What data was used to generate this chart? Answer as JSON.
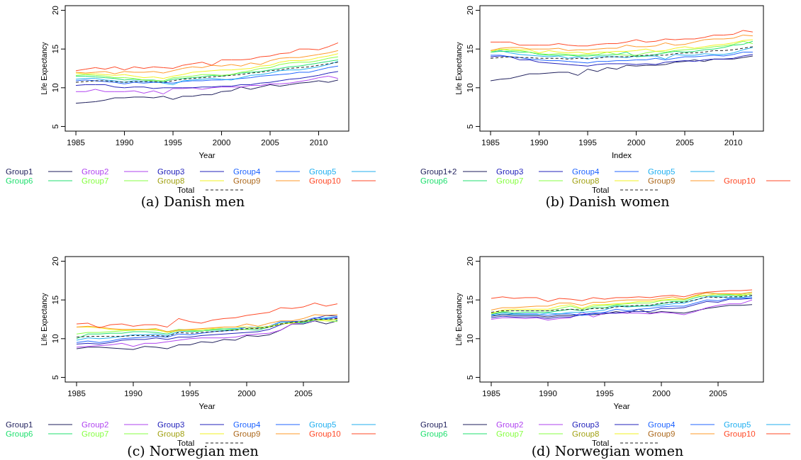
{
  "chart_data": [
    {
      "type": "line",
      "title": "(a) Danish men",
      "xlabel": "Year",
      "ylabel": "Life Expectancy",
      "legend": "bottom",
      "xlim": [
        1983.9,
        2013.1
      ],
      "ylim": [
        4.4,
        20.6
      ],
      "xticks": [
        1985,
        1990,
        1995,
        2000,
        2005,
        2010
      ],
      "yticks": [
        5,
        10,
        15,
        20
      ],
      "x": [
        1985,
        1986,
        1987,
        1988,
        1989,
        1990,
        1991,
        1992,
        1993,
        1994,
        1995,
        1996,
        1997,
        1998,
        1999,
        2000,
        2001,
        2002,
        2003,
        2004,
        2005,
        2006,
        2007,
        2008,
        2009,
        2010,
        2011,
        2012
      ],
      "series": [
        {
          "name": "Group1",
          "color": "#1f1f5c",
          "values": [
            8.0,
            8.1,
            8.2,
            8.4,
            8.7,
            8.7,
            8.8,
            8.8,
            8.7,
            8.9,
            8.5,
            8.9,
            8.9,
            9.1,
            9.1,
            9.5,
            9.6,
            10.1,
            9.8,
            10.1,
            10.4,
            10.2,
            10.4,
            10.6,
            10.7,
            10.9,
            10.7,
            11.0
          ]
        },
        {
          "name": "Group2",
          "color": "#b044f0",
          "values": [
            9.5,
            9.5,
            9.8,
            9.5,
            9.5,
            9.5,
            9.6,
            9.3,
            9.6,
            9.2,
            9.9,
            9.9,
            10.0,
            9.8,
            10.0,
            10.1,
            10.1,
            10.1,
            10.3,
            10.3,
            10.5,
            10.5,
            10.6,
            10.8,
            11.0,
            11.3,
            11.5,
            11.2
          ]
        },
        {
          "name": "Group3",
          "color": "#2222bb",
          "values": [
            10.3,
            10.4,
            10.4,
            10.4,
            10.1,
            10.0,
            10.1,
            10.1,
            9.9,
            10.0,
            10.0,
            10.0,
            10.0,
            10.1,
            10.1,
            10.2,
            10.2,
            10.4,
            10.4,
            10.6,
            10.7,
            10.9,
            11.1,
            11.2,
            11.4,
            11.6,
            11.9,
            12.1
          ]
        },
        {
          "name": "Group4",
          "color": "#2266ff",
          "values": [
            10.9,
            11.0,
            10.9,
            10.8,
            10.7,
            10.5,
            10.7,
            10.6,
            10.7,
            10.7,
            10.6,
            10.8,
            10.9,
            10.9,
            11.0,
            11.0,
            11.1,
            11.2,
            11.3,
            11.5,
            11.6,
            11.7,
            11.8,
            12.0,
            12.0,
            12.3,
            12.6,
            12.8
          ]
        },
        {
          "name": "Group5",
          "color": "#22b0f0",
          "values": [
            11.1,
            11.2,
            11.2,
            11.0,
            10.9,
            10.7,
            10.9,
            10.8,
            10.8,
            10.6,
            10.4,
            10.9,
            11.0,
            11.1,
            11.2,
            11.1,
            11.0,
            11.3,
            11.6,
            11.7,
            11.9,
            12.2,
            12.3,
            12.3,
            12.5,
            12.7,
            13.0,
            13.4
          ]
        },
        {
          "name": "Group6",
          "color": "#22e070",
          "values": [
            11.5,
            11.5,
            11.4,
            11.3,
            11.2,
            11.0,
            11.1,
            11.0,
            11.0,
            10.8,
            11.1,
            11.2,
            11.3,
            11.4,
            11.6,
            11.5,
            11.7,
            11.9,
            12.0,
            12.1,
            12.3,
            12.5,
            12.7,
            12.8,
            13.0,
            13.2,
            13.4,
            13.6
          ]
        },
        {
          "name": "Group7",
          "color": "#88ff44",
          "values": [
            11.6,
            11.7,
            11.6,
            11.5,
            11.3,
            11.3,
            11.2,
            11.0,
            10.9,
            10.9,
            11.3,
            11.4,
            11.5,
            11.7,
            11.7,
            11.6,
            11.7,
            12.0,
            12.2,
            12.5,
            12.6,
            13.0,
            13.2,
            13.3,
            13.3,
            13.5,
            13.8,
            14.0
          ]
        },
        {
          "name": "Group8",
          "color": "#f2f222",
          "values": [
            11.9,
            11.8,
            11.8,
            11.7,
            11.6,
            11.7,
            11.5,
            11.3,
            11.4,
            11.2,
            11.5,
            11.7,
            12.0,
            12.1,
            12.2,
            12.3,
            12.3,
            12.4,
            12.5,
            12.8,
            12.9,
            13.3,
            13.5,
            13.5,
            13.6,
            13.9,
            14.1,
            14.4
          ]
        },
        {
          "name": "Group9",
          "color": "#ff9a2a",
          "values": [
            12.0,
            11.9,
            12.0,
            12.1,
            11.8,
            12.1,
            12.0,
            12.0,
            12.1,
            11.9,
            12.2,
            12.5,
            12.7,
            12.6,
            12.9,
            12.8,
            13.0,
            12.8,
            13.2,
            13.0,
            13.5,
            13.8,
            13.9,
            13.9,
            14.1,
            14.3,
            14.5,
            14.8
          ]
        },
        {
          "name": "Group10",
          "color": "#ff4a28",
          "values": [
            12.2,
            12.4,
            12.6,
            12.4,
            12.7,
            12.3,
            12.7,
            12.5,
            12.7,
            12.6,
            12.5,
            12.9,
            13.1,
            13.3,
            12.9,
            13.6,
            13.6,
            13.6,
            13.7,
            14.0,
            14.1,
            14.4,
            14.5,
            15.0,
            15.0,
            14.9,
            15.3,
            15.8
          ]
        },
        {
          "name": "Total",
          "color": "#222222",
          "line_style": "dashed",
          "values": [
            10.7,
            10.8,
            10.9,
            10.9,
            10.8,
            10.7,
            10.8,
            10.8,
            10.8,
            10.7,
            10.9,
            11.1,
            11.2,
            11.3,
            11.4,
            11.5,
            11.6,
            11.7,
            11.9,
            12.0,
            12.2,
            12.3,
            12.5,
            12.6,
            12.7,
            12.9,
            13.1,
            13.3
          ]
        }
      ]
    },
    {
      "type": "line",
      "title": "(b) Danish women",
      "xlabel": "Index",
      "ylabel": "Life Expectancy",
      "legend": "bottom",
      "xlim": [
        1983.9,
        2013.1
      ],
      "ylim": [
        4.4,
        20.6
      ],
      "xticks": [
        1985,
        1990,
        1995,
        2000,
        2005,
        2010
      ],
      "yticks": [
        5,
        10,
        15,
        20
      ],
      "x": [
        1985,
        1986,
        1987,
        1988,
        1989,
        1990,
        1991,
        1992,
        1993,
        1994,
        1995,
        1996,
        1997,
        1998,
        1999,
        2000,
        2001,
        2002,
        2003,
        2004,
        2005,
        2006,
        2007,
        2008,
        2009,
        2010,
        2011,
        2012
      ],
      "series": [
        {
          "name": "Group1+2",
          "color": "#1f1f5c",
          "values": [
            10.9,
            11.1,
            11.2,
            11.5,
            11.8,
            11.8,
            11.9,
            12.0,
            12.0,
            11.6,
            12.4,
            12.1,
            12.6,
            12.4,
            12.9,
            12.8,
            12.9,
            12.9,
            13.0,
            13.3,
            13.4,
            13.6,
            13.4,
            13.7,
            13.7,
            13.7,
            13.9,
            14.1
          ]
        },
        {
          "name": "Group3",
          "color": "#2222bb",
          "values": [
            14.0,
            14.1,
            14.0,
            13.6,
            13.6,
            13.3,
            13.2,
            13.1,
            13.0,
            12.9,
            12.8,
            13.0,
            13.1,
            13.1,
            13.1,
            13.0,
            13.1,
            13.0,
            13.3,
            13.4,
            13.5,
            13.4,
            13.6,
            13.7,
            13.7,
            13.8,
            14.1,
            14.3
          ]
        },
        {
          "name": "Group4",
          "color": "#2266ff",
          "values": [
            14.2,
            14.2,
            14.0,
            13.9,
            13.7,
            13.6,
            13.5,
            13.5,
            13.4,
            13.3,
            13.2,
            13.4,
            13.4,
            13.5,
            13.5,
            13.6,
            13.6,
            13.8,
            13.6,
            13.8,
            14.0,
            14.0,
            14.1,
            14.2,
            14.1,
            14.3,
            14.6,
            14.6
          ]
        },
        {
          "name": "Group5",
          "color": "#22b0f0",
          "values": [
            14.6,
            14.8,
            14.5,
            14.3,
            14.2,
            14.1,
            14.0,
            14.1,
            13.8,
            14.0,
            13.7,
            14.0,
            14.0,
            14.0,
            13.9,
            14.1,
            14.1,
            14.1,
            13.7,
            14.3,
            14.2,
            14.2,
            14.4,
            14.3,
            14.3,
            14.5,
            14.9,
            15.2
          ]
        },
        {
          "name": "Group6",
          "color": "#22e070",
          "values": [
            14.6,
            14.7,
            14.7,
            14.6,
            14.6,
            14.3,
            14.2,
            14.2,
            14.2,
            14.1,
            14.1,
            14.2,
            14.2,
            14.3,
            14.6,
            14.0,
            14.1,
            14.3,
            14.5,
            14.7,
            14.6,
            14.7,
            14.9,
            15.0,
            15.2,
            15.5,
            15.6,
            16.0
          ]
        },
        {
          "name": "Group7",
          "color": "#88ff44",
          "values": [
            14.6,
            15.0,
            14.8,
            14.8,
            14.6,
            14.4,
            14.3,
            14.4,
            14.3,
            14.2,
            14.3,
            14.3,
            14.6,
            14.3,
            14.2,
            14.2,
            14.5,
            14.7,
            14.6,
            14.8,
            14.9,
            15.0,
            15.1,
            15.3,
            15.4,
            15.6,
            16.0,
            15.7
          ]
        },
        {
          "name": "Group8",
          "color": "#f2f222",
          "values": [
            14.8,
            14.9,
            15.0,
            14.9,
            14.9,
            14.5,
            14.8,
            14.6,
            14.5,
            14.6,
            14.4,
            14.6,
            14.6,
            14.7,
            14.7,
            14.8,
            15.0,
            14.7,
            14.8,
            15.1,
            15.3,
            15.1,
            15.3,
            15.5,
            15.6,
            15.8,
            16.1,
            16.2
          ]
        },
        {
          "name": "Group9",
          "color": "#ff9a2a",
          "values": [
            14.8,
            15.1,
            15.2,
            15.2,
            15.0,
            15.0,
            15.0,
            15.1,
            14.8,
            14.9,
            14.9,
            15.0,
            15.1,
            15.1,
            15.5,
            15.3,
            15.3,
            15.4,
            15.8,
            15.5,
            15.6,
            15.9,
            16.2,
            16.3,
            16.3,
            16.4,
            16.8,
            16.7
          ]
        },
        {
          "name": "Group10",
          "color": "#ff4a28",
          "values": [
            15.9,
            15.9,
            15.9,
            15.5,
            15.5,
            15.5,
            15.5,
            15.7,
            15.5,
            15.4,
            15.4,
            15.6,
            15.7,
            15.7,
            15.9,
            16.2,
            15.9,
            16.0,
            16.3,
            16.2,
            16.3,
            16.3,
            16.5,
            16.8,
            16.8,
            16.9,
            17.4,
            17.2
          ]
        },
        {
          "name": "Total",
          "color": "#222222",
          "line_style": "dashed",
          "values": [
            13.8,
            13.9,
            14.0,
            13.9,
            13.9,
            13.8,
            13.8,
            13.8,
            13.7,
            13.8,
            13.8,
            13.8,
            14.0,
            14.0,
            14.0,
            14.1,
            14.2,
            14.2,
            14.2,
            14.4,
            14.5,
            14.5,
            14.6,
            14.8,
            14.8,
            14.9,
            15.1,
            15.3
          ]
        }
      ]
    },
    {
      "type": "line",
      "title": "(c) Norwegian men",
      "xlabel": "Year",
      "ylabel": "Life Expectancy",
      "legend": "bottom",
      "xlim": [
        1984,
        2009
      ],
      "ylim": [
        4.4,
        20.6
      ],
      "xticks": [
        1985,
        1990,
        1995,
        2000,
        2005
      ],
      "yticks": [
        5,
        10,
        15,
        20
      ],
      "x": [
        1985,
        1986,
        1987,
        1988,
        1989,
        1990,
        1991,
        1992,
        1993,
        1994,
        1995,
        1996,
        1997,
        1998,
        1999,
        2000,
        2001,
        2002,
        2003,
        2004,
        2005,
        2006,
        2007,
        2008
      ],
      "series": [
        {
          "name": "Group1",
          "color": "#1f1f5c",
          "values": [
            8.7,
            8.9,
            8.9,
            8.8,
            8.7,
            8.6,
            9.0,
            8.9,
            8.7,
            9.2,
            9.2,
            9.6,
            9.5,
            9.9,
            9.8,
            10.4,
            10.3,
            10.5,
            11.1,
            11.9,
            11.9,
            12.3,
            11.9,
            12.3
          ]
        },
        {
          "name": "Group2",
          "color": "#b044f0",
          "values": [
            8.9,
            9.0,
            9.1,
            9.2,
            9.4,
            9.0,
            9.4,
            9.4,
            9.6,
            9.8,
            10.0,
            10.1,
            10.1,
            10.1,
            10.2,
            10.5,
            10.6,
            10.7,
            11.1,
            11.9,
            12.0,
            12.3,
            12.6,
            12.7
          ]
        },
        {
          "name": "Group3",
          "color": "#2222bb",
          "values": [
            9.3,
            9.4,
            9.3,
            9.5,
            9.8,
            9.9,
            9.9,
            10.1,
            9.9,
            10.2,
            10.2,
            10.4,
            10.5,
            10.6,
            10.7,
            10.8,
            10.9,
            11.2,
            11.8,
            12.2,
            12.2,
            12.6,
            13.0,
            12.9
          ]
        },
        {
          "name": "Group4",
          "color": "#2266ff",
          "values": [
            9.5,
            9.7,
            9.5,
            9.7,
            10.0,
            10.1,
            10.2,
            10.3,
            10.2,
            10.6,
            10.5,
            10.7,
            10.9,
            11.0,
            11.1,
            11.5,
            11.4,
            11.6,
            12.2,
            12.2,
            12.3,
            12.7,
            12.6,
            12.8
          ]
        },
        {
          "name": "Group5",
          "color": "#22b0f0",
          "values": [
            9.8,
            10.1,
            10.0,
            10.1,
            10.3,
            10.5,
            10.5,
            10.6,
            10.4,
            10.9,
            11.0,
            11.0,
            11.2,
            11.3,
            11.3,
            11.5,
            11.3,
            11.6,
            12.1,
            12.1,
            12.0,
            12.4,
            12.7,
            12.8
          ]
        },
        {
          "name": "Group6",
          "color": "#22e070",
          "values": [
            10.0,
            10.6,
            10.6,
            10.7,
            10.7,
            10.9,
            10.9,
            10.8,
            10.6,
            11.1,
            10.9,
            11.0,
            11.1,
            11.1,
            11.2,
            11.2,
            11.1,
            11.5,
            11.9,
            12.1,
            12.1,
            12.5,
            12.5,
            12.4
          ]
        },
        {
          "name": "Group7",
          "color": "#88ff44",
          "values": [
            10.6,
            10.8,
            10.8,
            10.9,
            11.0,
            11.1,
            11.2,
            11.1,
            10.9,
            11.2,
            11.1,
            11.0,
            11.2,
            11.3,
            11.2,
            11.2,
            11.5,
            11.5,
            11.9,
            12.1,
            12.1,
            12.4,
            12.3,
            12.2
          ]
        },
        {
          "name": "Group8",
          "color": "#f2f222",
          "values": [
            11.5,
            11.5,
            11.4,
            11.2,
            11.1,
            11.1,
            11.2,
            11.2,
            10.8,
            11.0,
            11.1,
            11.2,
            11.3,
            11.5,
            11.5,
            11.5,
            11.3,
            11.6,
            11.9,
            12.0,
            12.3,
            12.5,
            12.3,
            12.5
          ]
        },
        {
          "name": "Group9",
          "color": "#ff9a2a",
          "values": [
            11.5,
            11.6,
            11.5,
            11.3,
            11.2,
            11.2,
            11.2,
            11.3,
            10.9,
            11.1,
            11.2,
            11.3,
            11.4,
            11.5,
            11.5,
            11.9,
            11.6,
            12.0,
            12.3,
            12.3,
            12.6,
            13.1,
            13.0,
            13.1
          ]
        },
        {
          "name": "Group10",
          "color": "#ff4a28",
          "values": [
            11.9,
            12.0,
            11.4,
            11.8,
            11.9,
            11.6,
            11.8,
            11.8,
            11.5,
            12.6,
            12.2,
            12.0,
            12.4,
            12.6,
            12.7,
            13.0,
            13.2,
            13.4,
            14.0,
            13.9,
            14.1,
            14.6,
            14.2,
            14.5
          ]
        },
        {
          "name": "Total",
          "color": "#222222",
          "line_style": "dashed",
          "values": [
            10.2,
            10.3,
            10.3,
            10.3,
            10.3,
            10.4,
            10.4,
            10.4,
            10.3,
            10.8,
            10.7,
            10.8,
            10.9,
            11.0,
            11.1,
            11.3,
            11.3,
            11.5,
            11.9,
            12.1,
            12.2,
            12.5,
            12.5,
            12.6
          ]
        }
      ]
    },
    {
      "type": "line",
      "title": "(d) Norwegian women",
      "xlabel": "Year",
      "ylabel": "Life Expectancy",
      "legend": "bottom",
      "xlim": [
        1984,
        2009
      ],
      "ylim": [
        4.4,
        20.6
      ],
      "xticks": [
        1985,
        1990,
        1995,
        2000,
        2005
      ],
      "yticks": [
        5,
        10,
        15,
        20
      ],
      "x": [
        1985,
        1986,
        1987,
        1988,
        1989,
        1990,
        1991,
        1992,
        1993,
        1994,
        1995,
        1996,
        1997,
        1998,
        1999,
        2000,
        2001,
        2002,
        2003,
        2004,
        2005,
        2006,
        2007,
        2008
      ],
      "series": [
        {
          "name": "Group1",
          "color": "#1f1f5c",
          "values": [
            12.9,
            13.1,
            13.0,
            13.0,
            13.0,
            12.8,
            13.0,
            13.0,
            13.1,
            13.1,
            13.2,
            13.5,
            13.3,
            13.8,
            13.3,
            13.5,
            13.4,
            13.3,
            13.6,
            13.9,
            14.1,
            14.3,
            14.3,
            14.4
          ]
        },
        {
          "name": "Group2",
          "color": "#b044f0",
          "values": [
            12.5,
            12.7,
            12.7,
            12.6,
            12.7,
            12.4,
            12.6,
            12.7,
            13.4,
            12.8,
            13.3,
            13.3,
            13.3,
            13.3,
            13.2,
            13.4,
            13.3,
            13.1,
            13.5,
            14.0,
            14.3,
            14.5,
            14.5,
            15.0
          ]
        },
        {
          "name": "Group3",
          "color": "#2222bb",
          "values": [
            12.7,
            12.9,
            12.8,
            12.8,
            12.8,
            12.6,
            12.8,
            12.8,
            13.1,
            13.3,
            13.3,
            13.3,
            13.5,
            13.5,
            13.5,
            13.9,
            13.9,
            14.0,
            14.4,
            14.8,
            14.7,
            15.1,
            15.1,
            15.2
          ]
        },
        {
          "name": "Group4",
          "color": "#2266ff",
          "values": [
            13.1,
            13.4,
            13.2,
            13.2,
            13.2,
            13.0,
            13.2,
            13.2,
            13.0,
            13.2,
            13.4,
            13.8,
            13.6,
            13.8,
            13.9,
            14.1,
            14.2,
            14.2,
            14.6,
            15.0,
            14.9,
            15.2,
            15.2,
            15.3
          ]
        },
        {
          "name": "Group5",
          "color": "#22b0f0",
          "values": [
            13.0,
            13.2,
            13.1,
            13.1,
            13.1,
            13.3,
            13.2,
            13.4,
            13.4,
            13.5,
            13.7,
            14.2,
            14.1,
            14.2,
            14.2,
            14.3,
            14.5,
            14.6,
            15.0,
            15.4,
            15.4,
            15.3,
            15.3,
            15.5
          ]
        },
        {
          "name": "Group6",
          "color": "#22e070",
          "values": [
            13.2,
            13.4,
            13.3,
            13.4,
            13.4,
            13.4,
            13.6,
            13.8,
            13.6,
            14.0,
            14.0,
            14.3,
            14.2,
            14.2,
            14.3,
            14.5,
            14.8,
            14.8,
            15.3,
            15.6,
            15.5,
            15.6,
            15.5,
            15.8
          ]
        },
        {
          "name": "Group7",
          "color": "#88ff44",
          "values": [
            13.2,
            13.5,
            13.6,
            13.6,
            13.6,
            13.6,
            13.9,
            14.2,
            13.8,
            14.2,
            14.3,
            14.4,
            14.5,
            14.6,
            14.6,
            14.9,
            15.0,
            15.0,
            15.5,
            16.0,
            15.7,
            15.7,
            15.7,
            16.0
          ]
        },
        {
          "name": "Group8",
          "color": "#f2f222",
          "values": [
            13.3,
            13.7,
            13.8,
            13.8,
            13.8,
            13.8,
            14.2,
            14.4,
            13.9,
            14.4,
            14.4,
            14.5,
            14.6,
            14.8,
            14.8,
            15.0,
            15.1,
            15.1,
            15.5,
            15.6,
            15.8,
            15.8,
            15.6,
            15.8
          ]
        },
        {
          "name": "Group9",
          "color": "#ff9a2a",
          "values": [
            13.7,
            14.0,
            14.0,
            14.1,
            14.2,
            14.2,
            14.6,
            14.6,
            14.3,
            14.7,
            14.7,
            14.9,
            15.0,
            15.0,
            15.0,
            15.2,
            15.4,
            15.1,
            15.6,
            15.9,
            15.8,
            15.8,
            15.8,
            16.0
          ]
        },
        {
          "name": "Group10",
          "color": "#ff4a28",
          "values": [
            15.2,
            15.4,
            15.2,
            15.3,
            15.3,
            14.8,
            15.2,
            15.1,
            14.9,
            15.3,
            15.1,
            15.3,
            15.3,
            15.4,
            15.3,
            15.5,
            15.6,
            15.4,
            15.8,
            16.0,
            16.1,
            16.2,
            16.2,
            16.3
          ]
        },
        {
          "name": "Total",
          "color": "#222222",
          "line_style": "dashed",
          "values": [
            13.4,
            13.6,
            13.6,
            13.6,
            13.6,
            13.6,
            13.7,
            13.8,
            13.7,
            13.9,
            13.9,
            14.1,
            14.2,
            14.3,
            14.3,
            14.6,
            14.7,
            14.7,
            15.0,
            15.4,
            15.3,
            15.4,
            15.4,
            15.6
          ]
        }
      ]
    }
  ]
}
